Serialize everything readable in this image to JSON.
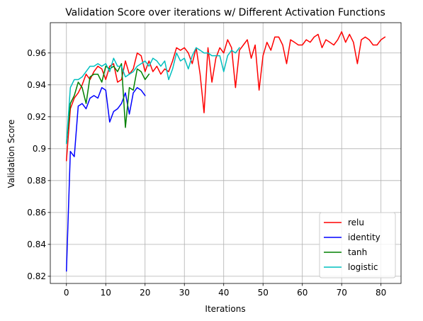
{
  "chart_data": {
    "type": "line",
    "title": "Validation Score over iterations w/ Different Activation Functions",
    "xlabel": "Iterations",
    "ylabel": "Validation Score",
    "xlim": [
      -4.1,
      85.1
    ],
    "ylim": [
      0.8155,
      0.979
    ],
    "xticks": [
      0,
      10,
      20,
      30,
      40,
      50,
      60,
      70,
      80
    ],
    "xtick_labels": [
      "0",
      "10",
      "20",
      "30",
      "40",
      "50",
      "60",
      "70",
      "80"
    ],
    "yticks": [
      0.82,
      0.84,
      0.86,
      0.88,
      0.9,
      0.92,
      0.94,
      0.96
    ],
    "ytick_labels": [
      "0.82",
      "0.84",
      "0.86",
      "0.88",
      "0.9",
      "0.92",
      "0.94",
      "0.96"
    ],
    "grid": true,
    "legend_position": "lower-right",
    "series": [
      {
        "name": "relu",
        "color": "#ff0000",
        "values": [
          0.8925,
          0.925,
          0.9317,
          0.935,
          0.94,
          0.9467,
          0.9433,
          0.9483,
          0.9517,
          0.95,
          0.9433,
          0.9517,
          0.9533,
          0.9417,
          0.9433,
          0.955,
          0.9467,
          0.95,
          0.96,
          0.9583,
          0.9483,
          0.955,
          0.9483,
          0.9517,
          0.9467,
          0.95,
          0.9483,
          0.955,
          0.9633,
          0.9617,
          0.9633,
          0.96,
          0.9533,
          0.9633,
          0.9467,
          0.9225,
          0.9633,
          0.9417,
          0.9567,
          0.9633,
          0.96,
          0.9683,
          0.9633,
          0.9383,
          0.9617,
          0.965,
          0.9683,
          0.9567,
          0.965,
          0.9367,
          0.9583,
          0.9667,
          0.9617,
          0.97,
          0.97,
          0.965,
          0.9533,
          0.9683,
          0.9667,
          0.965,
          0.965,
          0.9683,
          0.9667,
          0.97,
          0.9717,
          0.9633,
          0.9683,
          0.9667,
          0.965,
          0.9683,
          0.9733,
          0.9667,
          0.9717,
          0.9667,
          0.9533,
          0.9683,
          0.97,
          0.9683,
          0.965,
          0.965,
          0.9683,
          0.97
        ]
      },
      {
        "name": "identity",
        "color": "#0000ff",
        "values": [
          0.8233,
          0.8983,
          0.895,
          0.9267,
          0.9283,
          0.925,
          0.9317,
          0.9333,
          0.9317,
          0.9383,
          0.9367,
          0.9167,
          0.9233,
          0.925,
          0.9283,
          0.935,
          0.9217,
          0.935,
          0.9383,
          0.9367,
          0.9333
        ]
      },
      {
        "name": "tanh",
        "color": "#008000",
        "values": [
          0.9033,
          0.9283,
          0.9333,
          0.9417,
          0.9383,
          0.9283,
          0.945,
          0.9467,
          0.9467,
          0.9417,
          0.9517,
          0.95,
          0.9517,
          0.9483,
          0.9533,
          0.9133,
          0.9383,
          0.9367,
          0.95,
          0.9483,
          0.9433,
          0.9467
        ]
      },
      {
        "name": "logistic",
        "color": "#00bfbf",
        "values": [
          0.9033,
          0.9383,
          0.9433,
          0.9433,
          0.945,
          0.9483,
          0.9517,
          0.9517,
          0.9533,
          0.9517,
          0.9533,
          0.9483,
          0.9567,
          0.9517,
          0.9517,
          0.945,
          0.9467,
          0.9483,
          0.9517,
          0.9533,
          0.955,
          0.9517,
          0.9567,
          0.955,
          0.9517,
          0.955,
          0.9433,
          0.95,
          0.96,
          0.955,
          0.9567,
          0.95,
          0.9583,
          0.9633,
          0.9617,
          0.96,
          0.96,
          0.9583,
          0.9583,
          0.9583,
          0.9483,
          0.9583,
          0.9617,
          0.96,
          0.9633
        ]
      }
    ]
  }
}
